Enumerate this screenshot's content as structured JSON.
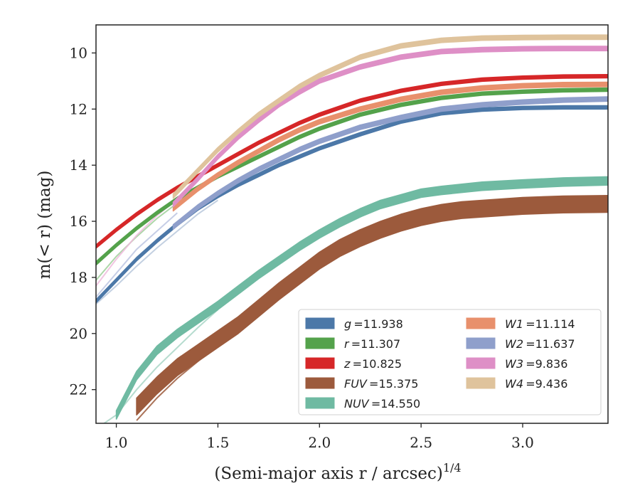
{
  "chart_data": {
    "type": "line",
    "title": "",
    "xlabel": "(Semi-major axis r / arcsec)",
    "xlabel_exponent": "1/4",
    "ylabel": "m(< r) (mag)",
    "xlim": [
      0.9,
      3.42
    ],
    "ylim": [
      23.2,
      9.0
    ],
    "x_ticks": [
      "1.0",
      "1.5",
      "2.0",
      "2.5",
      "3.0"
    ],
    "y_ticks": [
      "10",
      "12",
      "14",
      "16",
      "18",
      "20",
      "22"
    ],
    "grid": false,
    "legend_position": "lower-right",
    "series": [
      {
        "name": "g",
        "label": "g = 11.938",
        "color": "#4c78a8",
        "band": 0.06,
        "points": [
          [
            0.9,
            18.85
          ],
          [
            1.0,
            18.1
          ],
          [
            1.1,
            17.35
          ],
          [
            1.2,
            16.7
          ],
          [
            1.3,
            16.1
          ],
          [
            1.4,
            15.55
          ],
          [
            1.5,
            15.1
          ],
          [
            1.6,
            14.7
          ],
          [
            1.7,
            14.35
          ],
          [
            1.8,
            14.0
          ],
          [
            1.9,
            13.7
          ],
          [
            2.0,
            13.4
          ],
          [
            2.2,
            12.9
          ],
          [
            2.4,
            12.45
          ],
          [
            2.6,
            12.15
          ],
          [
            2.8,
            12.02
          ],
          [
            3.0,
            11.96
          ],
          [
            3.2,
            11.94
          ],
          [
            3.42,
            11.94
          ]
        ]
      },
      {
        "name": "r",
        "label": "r = 11.307",
        "color": "#54a24b",
        "band": 0.06,
        "points": [
          [
            0.9,
            17.5
          ],
          [
            1.0,
            16.85
          ],
          [
            1.1,
            16.25
          ],
          [
            1.2,
            15.7
          ],
          [
            1.3,
            15.2
          ],
          [
            1.4,
            14.8
          ],
          [
            1.5,
            14.4
          ],
          [
            1.6,
            14.05
          ],
          [
            1.7,
            13.7
          ],
          [
            1.8,
            13.35
          ],
          [
            1.9,
            13.0
          ],
          [
            2.0,
            12.7
          ],
          [
            2.2,
            12.2
          ],
          [
            2.4,
            11.85
          ],
          [
            2.6,
            11.6
          ],
          [
            2.8,
            11.45
          ],
          [
            3.0,
            11.38
          ],
          [
            3.2,
            11.33
          ],
          [
            3.42,
            11.31
          ]
        ]
      },
      {
        "name": "z",
        "label": "z = 10.825",
        "color": "#d62728",
        "band": 0.06,
        "points": [
          [
            0.9,
            16.9
          ],
          [
            1.0,
            16.3
          ],
          [
            1.1,
            15.75
          ],
          [
            1.2,
            15.25
          ],
          [
            1.3,
            14.8
          ],
          [
            1.4,
            14.4
          ],
          [
            1.5,
            14.0
          ],
          [
            1.6,
            13.6
          ],
          [
            1.7,
            13.2
          ],
          [
            1.8,
            12.85
          ],
          [
            1.9,
            12.5
          ],
          [
            2.0,
            12.2
          ],
          [
            2.2,
            11.7
          ],
          [
            2.4,
            11.35
          ],
          [
            2.6,
            11.1
          ],
          [
            2.8,
            10.95
          ],
          [
            3.0,
            10.88
          ],
          [
            3.2,
            10.84
          ],
          [
            3.42,
            10.83
          ]
        ]
      },
      {
        "name": "FUV",
        "label": "FUV = 15.375",
        "color": "#9c5a3c",
        "band": 0.3,
        "points": [
          [
            1.1,
            22.6
          ],
          [
            1.2,
            21.85
          ],
          [
            1.3,
            21.2
          ],
          [
            1.4,
            20.7
          ],
          [
            1.5,
            20.2
          ],
          [
            1.6,
            19.7
          ],
          [
            1.7,
            19.1
          ],
          [
            1.8,
            18.5
          ],
          [
            1.9,
            17.95
          ],
          [
            2.0,
            17.4
          ],
          [
            2.1,
            16.95
          ],
          [
            2.2,
            16.6
          ],
          [
            2.3,
            16.3
          ],
          [
            2.4,
            16.05
          ],
          [
            2.5,
            15.85
          ],
          [
            2.6,
            15.7
          ],
          [
            2.7,
            15.6
          ],
          [
            2.8,
            15.55
          ],
          [
            3.0,
            15.45
          ],
          [
            3.2,
            15.4
          ],
          [
            3.42,
            15.38
          ]
        ]
      },
      {
        "name": "NUV",
        "label": "NUV = 14.550",
        "color": "#6fbaa2",
        "band": 0.15,
        "points": [
          [
            1.0,
            22.9
          ],
          [
            1.1,
            21.5
          ],
          [
            1.2,
            20.6
          ],
          [
            1.3,
            20.0
          ],
          [
            1.4,
            19.5
          ],
          [
            1.5,
            19.0
          ],
          [
            1.6,
            18.45
          ],
          [
            1.7,
            17.9
          ],
          [
            1.8,
            17.4
          ],
          [
            1.9,
            16.9
          ],
          [
            2.0,
            16.45
          ],
          [
            2.1,
            16.05
          ],
          [
            2.2,
            15.7
          ],
          [
            2.3,
            15.4
          ],
          [
            2.4,
            15.2
          ],
          [
            2.5,
            15.0
          ],
          [
            2.6,
            14.9
          ],
          [
            2.8,
            14.75
          ],
          [
            3.0,
            14.67
          ],
          [
            3.2,
            14.6
          ],
          [
            3.42,
            14.56
          ]
        ]
      },
      {
        "name": "W1",
        "label": "W1 = 11.114",
        "color": "#e8906c",
        "band": 0.08,
        "points": [
          [
            1.28,
            15.55
          ],
          [
            1.4,
            14.85
          ],
          [
            1.5,
            14.35
          ],
          [
            1.6,
            13.9
          ],
          [
            1.7,
            13.5
          ],
          [
            1.8,
            13.1
          ],
          [
            1.9,
            12.75
          ],
          [
            2.0,
            12.45
          ],
          [
            2.2,
            12.0
          ],
          [
            2.4,
            11.65
          ],
          [
            2.6,
            11.4
          ],
          [
            2.8,
            11.25
          ],
          [
            3.0,
            11.17
          ],
          [
            3.2,
            11.13
          ],
          [
            3.42,
            11.12
          ]
        ]
      },
      {
        "name": "W2",
        "label": "W2 = 11.637",
        "color": "#8f9fcb",
        "band": 0.08,
        "points": [
          [
            1.28,
            16.2
          ],
          [
            1.4,
            15.5
          ],
          [
            1.5,
            15.0
          ],
          [
            1.6,
            14.55
          ],
          [
            1.7,
            14.15
          ],
          [
            1.8,
            13.8
          ],
          [
            1.9,
            13.45
          ],
          [
            2.0,
            13.15
          ],
          [
            2.2,
            12.65
          ],
          [
            2.4,
            12.3
          ],
          [
            2.6,
            12.0
          ],
          [
            2.8,
            11.85
          ],
          [
            3.0,
            11.75
          ],
          [
            3.2,
            11.68
          ],
          [
            3.42,
            11.64
          ]
        ]
      },
      {
        "name": "W3",
        "label": "W3 = 9.836",
        "color": "#de8fc6",
        "band": 0.08,
        "points": [
          [
            1.28,
            15.4
          ],
          [
            1.4,
            14.5
          ],
          [
            1.5,
            13.7
          ],
          [
            1.6,
            13.0
          ],
          [
            1.7,
            12.4
          ],
          [
            1.8,
            11.85
          ],
          [
            1.9,
            11.4
          ],
          [
            2.0,
            11.0
          ],
          [
            2.2,
            10.5
          ],
          [
            2.4,
            10.15
          ],
          [
            2.6,
            9.95
          ],
          [
            2.8,
            9.88
          ],
          [
            3.0,
            9.85
          ],
          [
            3.2,
            9.84
          ],
          [
            3.42,
            9.84
          ]
        ]
      },
      {
        "name": "W4",
        "label": "W4 = 9.436",
        "color": "#dfc39c",
        "band": 0.08,
        "points": [
          [
            1.28,
            15.1
          ],
          [
            1.4,
            14.2
          ],
          [
            1.5,
            13.45
          ],
          [
            1.6,
            12.8
          ],
          [
            1.7,
            12.2
          ],
          [
            1.8,
            11.7
          ],
          [
            1.9,
            11.2
          ],
          [
            2.0,
            10.8
          ],
          [
            2.2,
            10.15
          ],
          [
            2.4,
            9.75
          ],
          [
            2.6,
            9.55
          ],
          [
            2.8,
            9.47
          ],
          [
            3.0,
            9.45
          ],
          [
            3.2,
            9.44
          ],
          [
            3.42,
            9.44
          ]
        ]
      }
    ],
    "extra_traces": [
      {
        "series": "g",
        "color": "#b9c8dc",
        "points": [
          [
            0.9,
            18.95
          ],
          [
            1.0,
            18.3
          ],
          [
            1.1,
            17.6
          ],
          [
            1.2,
            16.95
          ],
          [
            1.3,
            16.35
          ],
          [
            1.4,
            15.75
          ],
          [
            1.5,
            15.25
          ]
        ]
      },
      {
        "series": "r",
        "color": "#9fd09a",
        "points": [
          [
            0.9,
            18.1
          ],
          [
            1.0,
            17.25
          ],
          [
            1.1,
            16.55
          ],
          [
            1.2,
            15.9
          ],
          [
            1.3,
            15.35
          ]
        ]
      },
      {
        "series": "W2",
        "color": "#bcc6e2",
        "points": [
          [
            0.9,
            18.7
          ],
          [
            1.0,
            17.85
          ],
          [
            1.1,
            17.0
          ],
          [
            1.2,
            16.35
          ],
          [
            1.3,
            15.7
          ]
        ]
      },
      {
        "series": "W3",
        "color": "#eebbdc",
        "points": [
          [
            0.9,
            18.3
          ],
          [
            1.0,
            17.35
          ],
          [
            1.1,
            16.5
          ],
          [
            1.2,
            15.8
          ],
          [
            1.3,
            15.2
          ]
        ]
      },
      {
        "series": "FUV",
        "color": "#9c5a3c",
        "points": [
          [
            1.1,
            23.1
          ],
          [
            1.2,
            22.3
          ],
          [
            1.3,
            21.6
          ],
          [
            1.4,
            21.0
          ],
          [
            1.5,
            20.4
          ],
          [
            1.6,
            19.9
          ]
        ]
      },
      {
        "series": "NUV",
        "color": "#a9d6c7",
        "points": [
          [
            0.9,
            23.4
          ],
          [
            1.0,
            22.9
          ],
          [
            1.1,
            22.0
          ],
          [
            1.2,
            21.2
          ],
          [
            1.3,
            20.5
          ],
          [
            1.4,
            19.8
          ],
          [
            1.5,
            19.15
          ]
        ]
      }
    ]
  }
}
